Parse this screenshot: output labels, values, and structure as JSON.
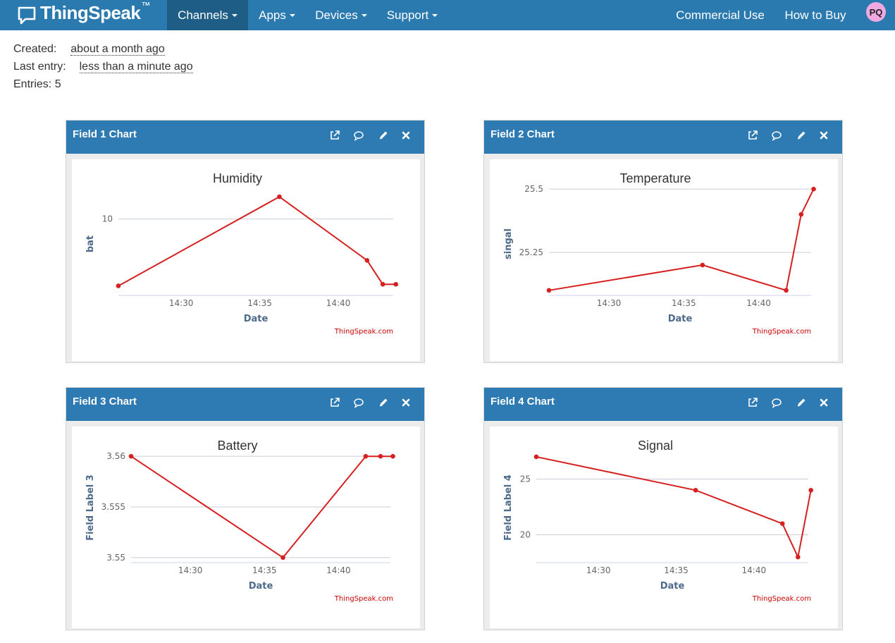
{
  "navbar": {
    "brand": "ThingSpeak",
    "brand_tm": "™",
    "items": [
      {
        "label": "Channels",
        "dropdown": true,
        "active": true
      },
      {
        "label": "Apps",
        "dropdown": true,
        "active": false
      },
      {
        "label": "Devices",
        "dropdown": true,
        "active": false
      },
      {
        "label": "Support",
        "dropdown": true,
        "active": false
      }
    ],
    "right_items": [
      "Commercial Use",
      "How to Buy"
    ],
    "avatar": "PQ"
  },
  "channel_info": {
    "created_label": "Created:",
    "created_value": "about a month ago",
    "last_entry_label": "Last entry:",
    "last_entry_value": "less than a minute ago",
    "entries_label": "Entries: 5"
  },
  "panel_icons": [
    "external-link-icon",
    "comment-icon",
    "pencil-icon",
    "close-icon"
  ],
  "colors": {
    "navbar": "#2a7ab0",
    "navbar_active": "#1e5d86",
    "panel_header": "#2e7bb4",
    "series": "#d62020",
    "credit": "#cc0000"
  },
  "panels": [
    {
      "header": "Field 1 Chart"
    },
    {
      "header": "Field 2 Chart"
    },
    {
      "header": "Field 3 Chart"
    },
    {
      "header": "Field 4 Chart"
    }
  ],
  "chart_data": [
    {
      "type": "line",
      "title": "Humidity",
      "xlabel": "Date",
      "ylabel": "bat",
      "credit": "ThingSpeak.com",
      "x_ticks": [
        "14:30",
        "14:35",
        "14:40"
      ],
      "y_ticks": [
        "10"
      ],
      "y_tick_values": [
        10
      ],
      "xlim": [
        "14:26:00",
        "14:43:30"
      ],
      "ylim": [
        7.6,
        11.1
      ],
      "grid": true,
      "series": [
        {
          "x": [
            "14:26:00",
            "14:36:15",
            "14:41:50",
            "14:42:50",
            "14:43:40"
          ],
          "values": [
            7.9,
            10.7,
            8.7,
            7.95,
            7.95
          ]
        }
      ]
    },
    {
      "type": "line",
      "title": "Temperature",
      "xlabel": "Date",
      "ylabel": "singal",
      "credit": "ThingSpeak.com",
      "x_ticks": [
        "14:30",
        "14:35",
        "14:40"
      ],
      "y_ticks": [
        "25.25",
        "25.5"
      ],
      "y_tick_values": [
        25.25,
        25.5
      ],
      "xlim": [
        "14:26:00",
        "14:43:30"
      ],
      "ylim": [
        25.08,
        25.52
      ],
      "grid": true,
      "series": [
        {
          "x": [
            "14:26:00",
            "14:36:15",
            "14:41:50",
            "14:42:50",
            "14:43:40"
          ],
          "values": [
            25.1,
            25.2,
            25.1,
            25.4,
            25.5
          ]
        }
      ]
    },
    {
      "type": "line",
      "title": "Battery",
      "xlabel": "Date",
      "ylabel": "Field Label 3",
      "credit": "ThingSpeak.com",
      "x_ticks": [
        "14:30",
        "14:35",
        "14:40"
      ],
      "y_ticks": [
        "3.55",
        "3.555",
        "3.56"
      ],
      "y_tick_values": [
        3.55,
        3.555,
        3.56
      ],
      "xlim": [
        "14:26:00",
        "14:43:30"
      ],
      "ylim": [
        3.5495,
        3.5605
      ],
      "grid": true,
      "series": [
        {
          "x": [
            "14:26:00",
            "14:36:15",
            "14:41:50",
            "14:42:50",
            "14:43:40"
          ],
          "values": [
            3.56,
            3.55,
            3.56,
            3.56,
            3.56
          ]
        }
      ]
    },
    {
      "type": "line",
      "title": "Signal",
      "xlabel": "Date",
      "ylabel": "Field Label 4",
      "credit": "ThingSpeak.com",
      "x_ticks": [
        "14:30",
        "14:35",
        "14:40"
      ],
      "y_ticks": [
        "20",
        "25"
      ],
      "y_tick_values": [
        20,
        25
      ],
      "xlim": [
        "14:26:00",
        "14:43:30"
      ],
      "ylim": [
        17.5,
        27.5
      ],
      "grid": true,
      "series": [
        {
          "x": [
            "14:26:00",
            "14:36:15",
            "14:41:50",
            "14:42:50",
            "14:43:40"
          ],
          "values": [
            27,
            24,
            21,
            18,
            24
          ]
        }
      ]
    }
  ]
}
